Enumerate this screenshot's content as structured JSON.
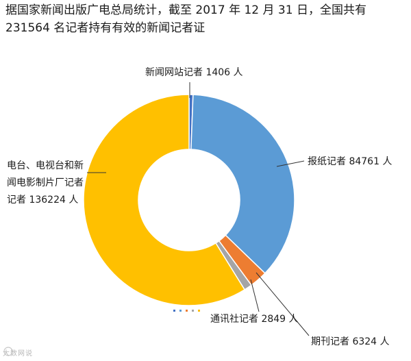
{
  "title_line1": "据国家新闻出版广电总局统计，截至 2017 年 12 月 31 日，全国共有",
  "title_line2": "231564 名记者持有有效的新闻记者证",
  "watermark": "大数网说",
  "colors": {
    "newspaper": "#5B9BD5",
    "periodical": "#ED7D31",
    "news_agency": "#A5A5A5",
    "radio_tv_film": "#FFC000",
    "website": "#4472C4"
  },
  "chart_data": {
    "type": "pie",
    "subtype": "donut",
    "total": 231564,
    "series": [
      {
        "name": "新闻网站记者",
        "value": 1406,
        "label_lines": [
          "新闻网站记者 1406 人"
        ],
        "color": "#4472C4"
      },
      {
        "name": "报纸记者",
        "value": 84761,
        "label_lines": [
          "报纸记者 84761 人"
        ],
        "color": "#5B9BD5"
      },
      {
        "name": "期刊记者",
        "value": 6324,
        "label_lines": [
          "期刊记者 6324 人"
        ],
        "color": "#ED7D31"
      },
      {
        "name": "通讯社记者",
        "value": 2849,
        "label_lines": [
          "通讯社记者 2849 人"
        ],
        "color": "#A5A5A5"
      },
      {
        "name": "电台、电视台和新闻电影制片厂记者",
        "value": 136224,
        "label_lines": [
          "电台、电视台和新",
          "闻电影制片厂记者",
          "记者 136224 人"
        ],
        "color": "#FFC000"
      }
    ],
    "legend_position": "bottom"
  }
}
